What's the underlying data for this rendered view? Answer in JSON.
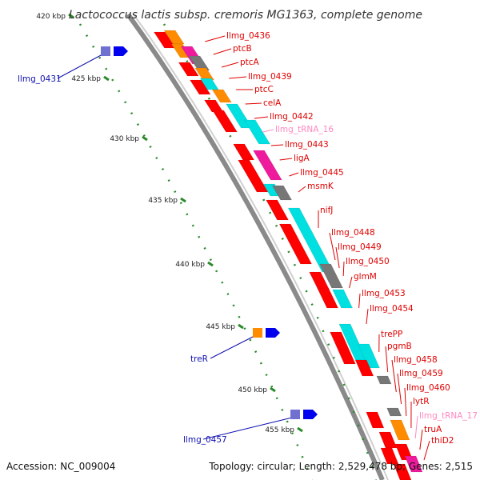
{
  "title": "Lactococcus lactis subsp. cremoris MG1363, complete genome",
  "footer": {
    "accession": "Accession: NC_009004",
    "topology": "Topology: circular; Length: 2,529,478 bp; Genes: 2,515"
  },
  "colors": {
    "backbone": "#8a8a8a",
    "cds": "#ff0000",
    "cds_alt": "#00e0e0",
    "trna": "#ee1c9c",
    "hypothetical": "#777777",
    "other": "#ff8c00",
    "label_red": "#e00000",
    "label_pink": "#ff88c0",
    "label_blue": "#1010b0",
    "tick_green": "#2a8a2a"
  },
  "ticks": [
    {
      "label": "420 kbp"
    },
    {
      "label": "425 kbp"
    },
    {
      "label": "430 kbp"
    },
    {
      "label": "435 kbp"
    },
    {
      "label": "440 kbp"
    },
    {
      "label": "445 kbp"
    },
    {
      "label": "450 kbp"
    },
    {
      "label": "455 kbp"
    }
  ],
  "genes": [
    {
      "name": "llmg_0436",
      "kind": "cds"
    },
    {
      "name": "ptcB",
      "kind": "cds"
    },
    {
      "name": "ptcA",
      "kind": "cds"
    },
    {
      "name": "llmg_0439",
      "kind": "cds"
    },
    {
      "name": "ptcC",
      "kind": "cds"
    },
    {
      "name": "celA",
      "kind": "cds"
    },
    {
      "name": "llmg_0442",
      "kind": "cds"
    },
    {
      "name": "llmg_tRNA_16",
      "kind": "trna"
    },
    {
      "name": "llmg_0443",
      "kind": "cds"
    },
    {
      "name": "ligA",
      "kind": "cds"
    },
    {
      "name": "llmg_0445",
      "kind": "cds"
    },
    {
      "name": "msmK",
      "kind": "cds"
    },
    {
      "name": "nifJ",
      "kind": "cds"
    },
    {
      "name": "llmg_0448",
      "kind": "cds"
    },
    {
      "name": "llmg_0449",
      "kind": "cds"
    },
    {
      "name": "llmg_0450",
      "kind": "cds"
    },
    {
      "name": "glmM",
      "kind": "cds"
    },
    {
      "name": "llmg_0453",
      "kind": "cds"
    },
    {
      "name": "llmg_0454",
      "kind": "cds"
    },
    {
      "name": "trePP",
      "kind": "cds"
    },
    {
      "name": "pgmB",
      "kind": "cds"
    },
    {
      "name": "llmg_0458",
      "kind": "cds"
    },
    {
      "name": "llmg_0459",
      "kind": "cds"
    },
    {
      "name": "llmg_0460",
      "kind": "cds"
    },
    {
      "name": "lytR",
      "kind": "cds"
    },
    {
      "name": "llmg_tRNA_17",
      "kind": "trna"
    },
    {
      "name": "truA",
      "kind": "cds"
    },
    {
      "name": "thiD2",
      "kind": "cds"
    }
  ],
  "left_genes": [
    {
      "name": "llmg_0431",
      "kind": "blue"
    },
    {
      "name": "treR",
      "kind": "blue"
    },
    {
      "name": "llmg_0457",
      "kind": "blue"
    }
  ]
}
